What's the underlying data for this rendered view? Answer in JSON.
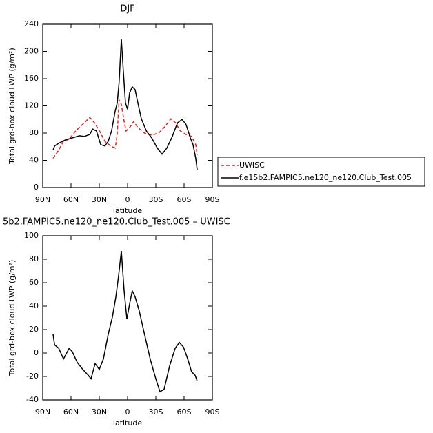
{
  "chart_data": [
    {
      "type": "line",
      "title": "DJF",
      "xlabel": "latitude",
      "ylabel": "Total grd-box cloud LWP (g/m²)",
      "xlim": [
        90,
        -90
      ],
      "ylim": [
        0,
        240
      ],
      "xticks": [
        {
          "value": 90,
          "label": "90N"
        },
        {
          "value": 60,
          "label": "60N"
        },
        {
          "value": 30,
          "label": "30N"
        },
        0,
        {
          "value": -30,
          "label": "30S"
        },
        {
          "value": -60,
          "label": "60S"
        },
        {
          "value": -90,
          "label": "90S"
        }
      ],
      "yticks": [
        0,
        40,
        80,
        120,
        160,
        200,
        240
      ],
      "series": [
        {
          "name": "UWISC",
          "color": "#e0201b",
          "dash": true,
          "x": [
            79,
            73,
            68,
            62,
            55,
            47.5,
            40,
            35,
            29,
            24,
            18,
            13,
            11,
            9,
            6.6,
            3.7,
            1.5,
            -2.2,
            -6.6,
            -11,
            -18,
            -25.6,
            -33,
            -40,
            -46,
            -51,
            -56,
            -62,
            -68,
            -72.4,
            -74
          ],
          "values": [
            43,
            55,
            68,
            71,
            83,
            93,
            103,
            95,
            81,
            68,
            61,
            58,
            78,
            129,
            122,
            98,
            83,
            88,
            97,
            88,
            80,
            77,
            80,
            90,
            101,
            95,
            83,
            78,
            75,
            63,
            48
          ]
        },
        {
          "name": "f.e15b2.FAMPIC5.ne120_ne120.Club_Test.005",
          "color": "#000000",
          "dash": false,
          "x": [
            79,
            77.4,
            73,
            66,
            58.5,
            51,
            46,
            40,
            37,
            33,
            28.5,
            24,
            20.5,
            17,
            13,
            11,
            9,
            6.6,
            4.4,
            2.2,
            0,
            -2.2,
            -5,
            -8,
            -11,
            -14.6,
            -20,
            -25.6,
            -31.5,
            -36.6,
            -41.7,
            -47.5,
            -53,
            -57.8,
            -62,
            -66.6,
            -69.5,
            -72.4,
            -73.9
          ],
          "values": [
            55,
            61,
            65,
            70,
            73,
            76,
            75,
            78,
            86,
            83,
            63,
            61,
            68,
            83,
            113,
            124,
            154,
            218,
            169,
            124,
            115,
            139,
            148,
            144,
            124,
            101,
            83,
            73,
            58,
            49,
            58,
            75,
            95,
            100,
            93,
            73,
            63,
            43,
            26
          ]
        }
      ]
    },
    {
      "type": "line",
      "title": "5b2.FAMPIC5.ne120_ne120.Club_Test.005 – UWISC",
      "xlabel": "latitude",
      "ylabel": "Total grd-box cloud LWP (g/m²)",
      "xlim": [
        90,
        -90
      ],
      "ylim": [
        -40,
        100
      ],
      "xticks": [
        {
          "value": 90,
          "label": "90N"
        },
        {
          "value": 60,
          "label": "60N"
        },
        {
          "value": 30,
          "label": "30N"
        },
        0,
        {
          "value": -30,
          "label": "30S"
        },
        {
          "value": -60,
          "label": "60S"
        },
        {
          "value": -90,
          "label": "90S"
        }
      ],
      "yticks": [
        -40,
        -20,
        0,
        20,
        40,
        60,
        80,
        100
      ],
      "series": [
        {
          "color": "#000000",
          "dash": false,
          "x": [
            79,
            77.4,
            73,
            68,
            62,
            58.5,
            53.4,
            47.5,
            41.7,
            38.8,
            34.4,
            30,
            25.6,
            20.5,
            16,
            12.4,
            9.5,
            6.6,
            3.7,
            0.7,
            -2.2,
            -5,
            -8,
            -12.4,
            -18,
            -24,
            -30,
            -34.4,
            -38.8,
            -44.6,
            -50.5,
            -55,
            -59.4,
            -63.8,
            -68,
            -71.7,
            -73.9
          ],
          "values": [
            16,
            7,
            4,
            -5,
            4,
            1,
            -8,
            -14,
            -19,
            -22,
            -9,
            -14,
            -5,
            16,
            31,
            48,
            66,
            87,
            54,
            29,
            42,
            53,
            48,
            36,
            16,
            -5,
            -22,
            -33,
            -31,
            -11,
            4,
            9,
            5,
            -5,
            -16,
            -19,
            -24
          ]
        }
      ]
    }
  ]
}
